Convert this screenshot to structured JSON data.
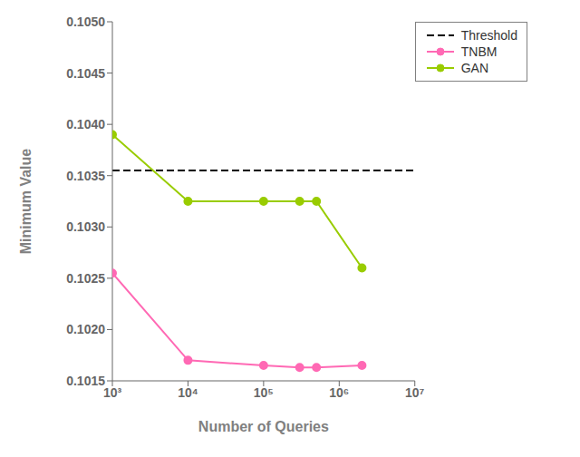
{
  "chart_data": {
    "type": "line",
    "xlabel": "Number of Queries",
    "ylabel": "Minimum Value",
    "log": "x",
    "xlim": [
      1000,
      10000000
    ],
    "xticks": [
      {
        "value": 1000,
        "label": "10³"
      },
      {
        "value": 10000,
        "label": "10⁴"
      },
      {
        "value": 100000,
        "label": "10⁵"
      },
      {
        "value": 1000000,
        "label": "10⁶"
      },
      {
        "value": 10000000,
        "label": "10⁷"
      }
    ],
    "ylim": [
      0.1015,
      0.105
    ],
    "yticks": [
      0.1015,
      {
        "value": 0.102,
        "label": "0.1020"
      },
      0.1025,
      {
        "value": 0.103,
        "label": "0.1030"
      },
      0.1035,
      {
        "value": 0.104,
        "label": "0.1040"
      },
      0.1045,
      {
        "value": 0.105,
        "label": "0.1050"
      }
    ],
    "grid": false,
    "legend": "upper right",
    "marker": "circle",
    "series": [
      {
        "name": "Threshold",
        "type": "hline",
        "color": "#000000",
        "line_style": "dashed",
        "values": [
          0.10355
        ]
      },
      {
        "name": "TNBM",
        "color": "#FF69B4",
        "line_style": "solid",
        "x": [
          1000,
          10000,
          100000,
          300000,
          500000,
          2000000
        ],
        "values": [
          0.10255,
          0.1017,
          0.10165,
          0.10163,
          0.10163,
          0.10165
        ]
      },
      {
        "name": "GAN",
        "color": "#99CC00",
        "line_style": "solid",
        "x": [
          1000,
          10000,
          100000,
          300000,
          500000,
          2000000
        ],
        "values": [
          0.1039,
          0.10325,
          0.10325,
          0.10325,
          0.10325,
          0.1026
        ]
      }
    ]
  }
}
